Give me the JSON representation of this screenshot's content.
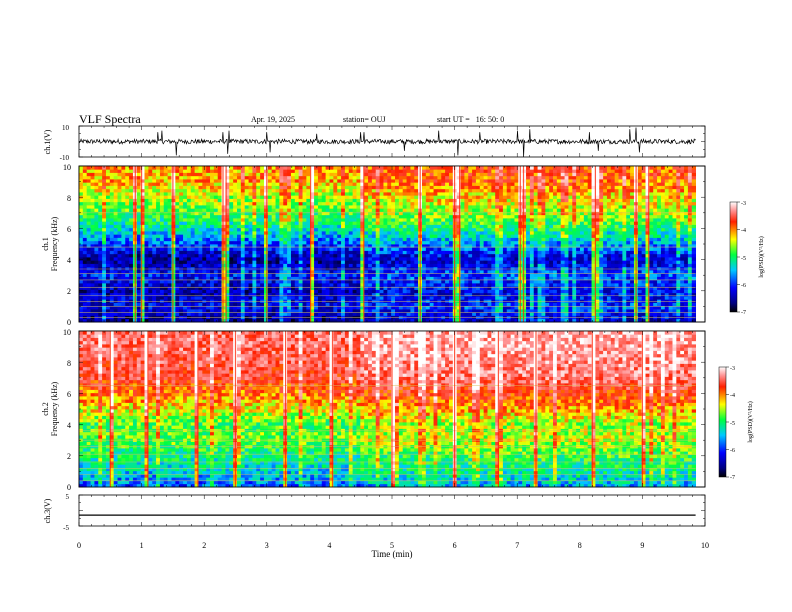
{
  "header": {
    "title": "VLF Spectra",
    "date": "Apr. 19, 2025",
    "station": "station= OUJ",
    "start_ut": "start UT =   16: 50: 0"
  },
  "chart_data": [
    {
      "type": "line",
      "panel": "ch1-waveform",
      "ylabel": "ch.1(V)",
      "yticks": [
        "10",
        "-10"
      ],
      "ylim": [
        -10,
        10
      ],
      "xlim": [
        0,
        10
      ],
      "baseline": 0,
      "noise_amplitude": 1.5,
      "spikes": [
        [
          1.26,
          6
        ],
        [
          1.32,
          7
        ],
        [
          1.55,
          -9
        ],
        [
          2.3,
          6
        ],
        [
          2.37,
          -8
        ],
        [
          2.4,
          7
        ],
        [
          3.0,
          6
        ],
        [
          3.05,
          -7
        ],
        [
          3.8,
          5
        ],
        [
          4.5,
          6
        ],
        [
          4.55,
          6
        ],
        [
          5.2,
          -6
        ],
        [
          5.75,
          7
        ],
        [
          6.05,
          -9
        ],
        [
          6.4,
          6
        ],
        [
          7.0,
          7
        ],
        [
          7.1,
          -10
        ],
        [
          7.2,
          8
        ],
        [
          8.15,
          6
        ],
        [
          8.3,
          -6
        ],
        [
          8.8,
          8
        ],
        [
          8.9,
          9
        ],
        [
          8.95,
          -7
        ]
      ]
    },
    {
      "type": "heatmap",
      "panel": "ch1-spectrogram",
      "ylabel": "ch.1\nFrequency (kHz)",
      "yticks": [
        "0",
        "2",
        "4",
        "6",
        "8",
        "10"
      ],
      "ylim": [
        0,
        10
      ],
      "xlim": [
        0,
        9.85
      ],
      "colorbar": {
        "label": "log(PSD)(V²/Hz)",
        "ticks": [
          "-3",
          "-4",
          "-5",
          "-6",
          "-7"
        ],
        "range": [
          -7,
          -3
        ]
      },
      "level_profile": [
        [
          0,
          -6.8
        ],
        [
          0.5,
          -6.5
        ],
        [
          1.0,
          -6.3
        ],
        [
          2.0,
          -6.6
        ],
        [
          3.0,
          -6.2
        ],
        [
          4.0,
          -6.7
        ],
        [
          5.0,
          -6.0
        ],
        [
          6.0,
          -5.4
        ],
        [
          7.0,
          -4.9
        ],
        [
          8.0,
          -4.6
        ],
        [
          9.0,
          -4.2
        ],
        [
          10.0,
          -4.1
        ]
      ],
      "horizontal_lines_kHz": [
        0.3,
        0.6,
        1.0,
        1.3,
        1.7,
        2.2,
        2.7,
        3.1,
        3.4,
        4.8,
        7.0
      ],
      "bright_columns_min": [
        0.9,
        1.0,
        1.5,
        2.3,
        2.35,
        3.0,
        3.7,
        4.55,
        5.45,
        6.0,
        6.08,
        7.05,
        7.1,
        8.25,
        8.9,
        9.1
      ]
    },
    {
      "type": "heatmap",
      "panel": "ch2-spectrogram",
      "ylabel": "ch.2\nFrequency (kHz)",
      "yticks": [
        "0",
        "2",
        "4",
        "6",
        "8",
        "10"
      ],
      "ylim": [
        0,
        10
      ],
      "xlim": [
        0,
        9.85
      ],
      "colorbar": {
        "label": "log(PSD)(V²/Hz)",
        "ticks": [
          "-3",
          "-4",
          "-5",
          "-6",
          "-7"
        ],
        "range": [
          -7,
          -3
        ]
      },
      "level_profile": [
        [
          0,
          -6.0
        ],
        [
          0.5,
          -5.7
        ],
        [
          1.0,
          -5.5
        ],
        [
          2.0,
          -5.2
        ],
        [
          3.0,
          -4.8
        ],
        [
          4.0,
          -4.9
        ],
        [
          5.0,
          -4.4
        ],
        [
          6.0,
          -4.0
        ],
        [
          7.0,
          -3.6
        ],
        [
          8.0,
          -3.5
        ],
        [
          9.0,
          -3.4
        ],
        [
          10.0,
          -3.4
        ]
      ],
      "horizontal_lines_kHz": [
        0.4,
        0.8,
        1.2,
        1.6,
        2.1,
        2.6,
        3.0,
        3.6,
        6.5
      ],
      "bright_columns_min": [
        0.5,
        1.1,
        1.9,
        2.5,
        3.3,
        4.05,
        5.0,
        6.0,
        6.7,
        7.3,
        8.2,
        9.0
      ]
    },
    {
      "type": "line",
      "panel": "ch3-waveform",
      "ylabel": "ch.3(V)",
      "yticks": [
        "5",
        "-5"
      ],
      "ylim": [
        -5,
        5
      ],
      "xlim": [
        0,
        10
      ],
      "baseline": -1.5,
      "xlabel": "Time (min)",
      "xticks": [
        "0",
        "1",
        "2",
        "3",
        "4",
        "5",
        "6",
        "7",
        "8",
        "9",
        "10"
      ]
    }
  ]
}
